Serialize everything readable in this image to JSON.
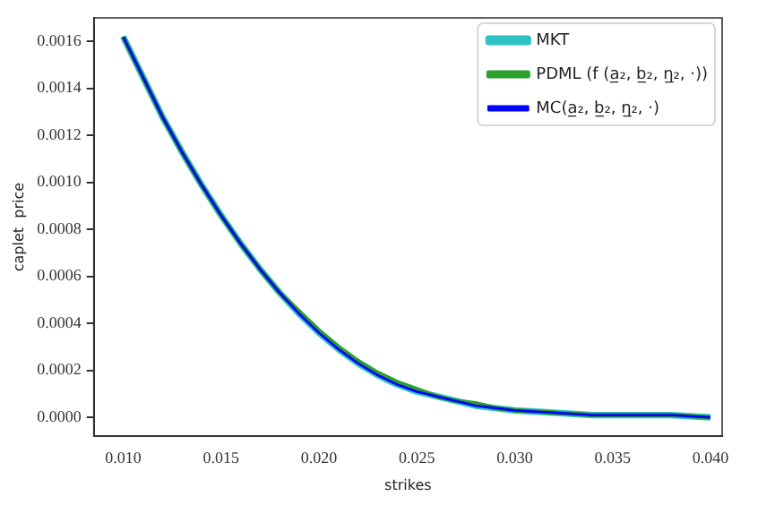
{
  "chart_data": {
    "type": "line",
    "xlabel": "strikes",
    "ylabel": "caplet  price",
    "x": [
      0.01,
      0.011,
      0.012,
      0.013,
      0.014,
      0.015,
      0.016,
      0.017,
      0.018,
      0.019,
      0.02,
      0.021,
      0.022,
      0.023,
      0.024,
      0.025,
      0.026,
      0.027,
      0.028,
      0.029,
      0.03,
      0.032,
      0.034,
      0.036,
      0.038,
      0.04
    ],
    "series": [
      {
        "name": "MKT",
        "color": "#2ec4c4",
        "values": [
          0.00162,
          0.00145,
          0.00128,
          0.00113,
          0.00099,
          0.00086,
          0.00074,
          0.00063,
          0.00053,
          0.00044,
          0.00036,
          0.00029,
          0.00023,
          0.00018,
          0.00014,
          0.00011,
          9e-05,
          7e-05,
          5e-05,
          4e-05,
          3e-05,
          2e-05,
          1e-05,
          1e-05,
          1e-05,
          0
        ]
      },
      {
        "name": "PDML (f (a̲₂, b̲₂, η̲₂, ·))",
        "color": "#2ca02c",
        "values": [
          0.00162,
          0.00145,
          0.00128,
          0.00113,
          0.00099,
          0.00086,
          0.00074,
          0.00063,
          0.00053,
          0.00045,
          0.00037,
          0.0003,
          0.00024,
          0.00019,
          0.00015,
          0.00012,
          9e-05,
          7e-05,
          6e-05,
          4e-05,
          3e-05,
          2e-05,
          1e-05,
          1e-05,
          1e-05,
          0
        ]
      },
      {
        "name": "MC(a̲₂, b̲₂, η̲₂, ·)",
        "color": "#0000ff",
        "values": [
          0.00162,
          0.00145,
          0.00128,
          0.00113,
          0.00099,
          0.00086,
          0.00074,
          0.00063,
          0.00053,
          0.00044,
          0.00036,
          0.00029,
          0.00023,
          0.00018,
          0.00014,
          0.00011,
          9e-05,
          7e-05,
          5e-05,
          4e-05,
          3e-05,
          2e-05,
          1e-05,
          1e-05,
          1e-05,
          0
        ]
      }
    ],
    "xlim": [
      0.0085,
      0.0406
    ],
    "xticks": [
      {
        "value": 0.01,
        "label": "0.010"
      },
      {
        "value": 0.015,
        "label": "0.015"
      },
      {
        "value": 0.02,
        "label": "0.020"
      },
      {
        "value": 0.025,
        "label": "0.025"
      },
      {
        "value": 0.03,
        "label": "0.030"
      },
      {
        "value": 0.035,
        "label": "0.035"
      },
      {
        "value": 0.04,
        "label": "0.040"
      }
    ],
    "ylim": [
      -8e-05,
      0.0017
    ],
    "yticks": [
      {
        "value": 0,
        "label": "0.0000"
      },
      {
        "value": 0.0002,
        "label": "0.0002"
      },
      {
        "value": 0.0004,
        "label": "0.0004"
      },
      {
        "value": 0.0006,
        "label": "0.0006"
      },
      {
        "value": 0.0008,
        "label": "0.0008"
      },
      {
        "value": 0.001,
        "label": "0.0010"
      },
      {
        "value": 0.0012,
        "label": "0.0012"
      },
      {
        "value": 0.0014,
        "label": "0.0014"
      },
      {
        "value": 0.0016,
        "label": "0.0016"
      }
    ],
    "grid": false,
    "legend": "top right",
    "marker": "none",
    "line_style": "solid"
  }
}
